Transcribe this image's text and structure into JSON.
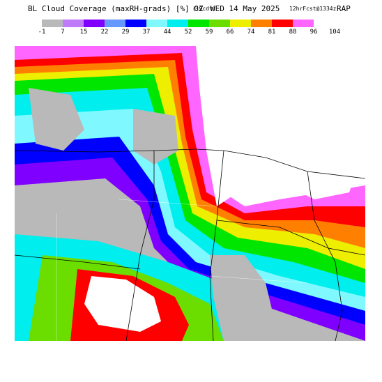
{
  "header": {
    "title": "BL Cloud Coverage (maxRH-grads) [%] 0Z",
    "local_time": "(19cdt)",
    "valid_date": "WED 14 May 2025",
    "forecast": "12hrFcst@1334z",
    "model": "RAP"
  },
  "legend": {
    "ticks": [
      "-1",
      "7",
      "15",
      "22",
      "29",
      "37",
      "44",
      "52",
      "59",
      "66",
      "74",
      "81",
      "88",
      "96",
      "104"
    ],
    "colors": [
      "#b9b9b9",
      "#c07cf8",
      "#8000ff",
      "#6699ff",
      "#0000ff",
      "#7ff9ff",
      "#00eeee",
      "#00e600",
      "#6bde00",
      "#eeee00",
      "#ff8000",
      "#ff0000",
      "#ff66ff",
      "#ffffff"
    ]
  },
  "map": {
    "field": "BL Cloud Coverage",
    "units": "%",
    "overlays": [
      "state-boundaries",
      "county-lines"
    ]
  }
}
